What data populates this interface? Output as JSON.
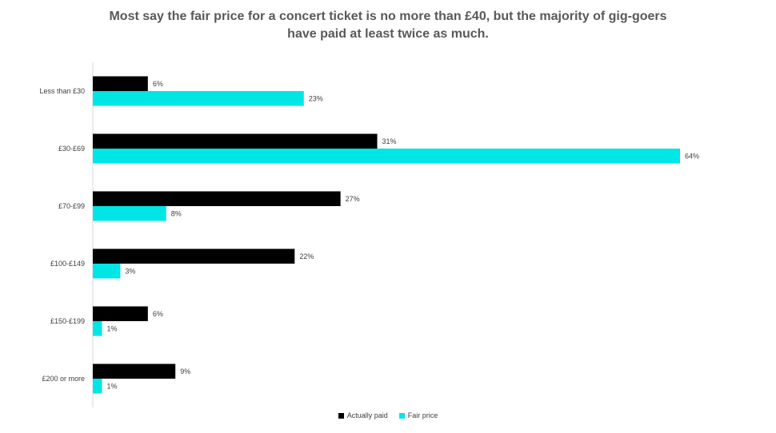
{
  "chart_data": {
    "type": "bar",
    "orientation": "horizontal",
    "title": "Most say the fair price for a concert ticket is no more than £40, but the majority of gig-goers have paid at least twice as much.",
    "categories": [
      "Less than £30",
      "£30-£69",
      "£70-£99",
      "£100-£149",
      "£150-£199",
      "£200 or more"
    ],
    "series": [
      {
        "name": "Actually paid",
        "color": "#000000",
        "values": [
          6,
          31,
          27,
          22,
          6,
          9
        ],
        "labels": [
          "6%",
          "31%",
          "27%",
          "22%",
          "6%",
          "9%"
        ]
      },
      {
        "name": "Fair price",
        "color": "#00e5e5",
        "values": [
          23,
          64,
          8,
          3,
          1,
          1
        ],
        "labels": [
          "23%",
          "64%",
          "8%",
          "3%",
          "1%",
          "1%"
        ]
      }
    ],
    "xlim": [
      0,
      64
    ],
    "grid": false,
    "legend_position": "bottom"
  }
}
